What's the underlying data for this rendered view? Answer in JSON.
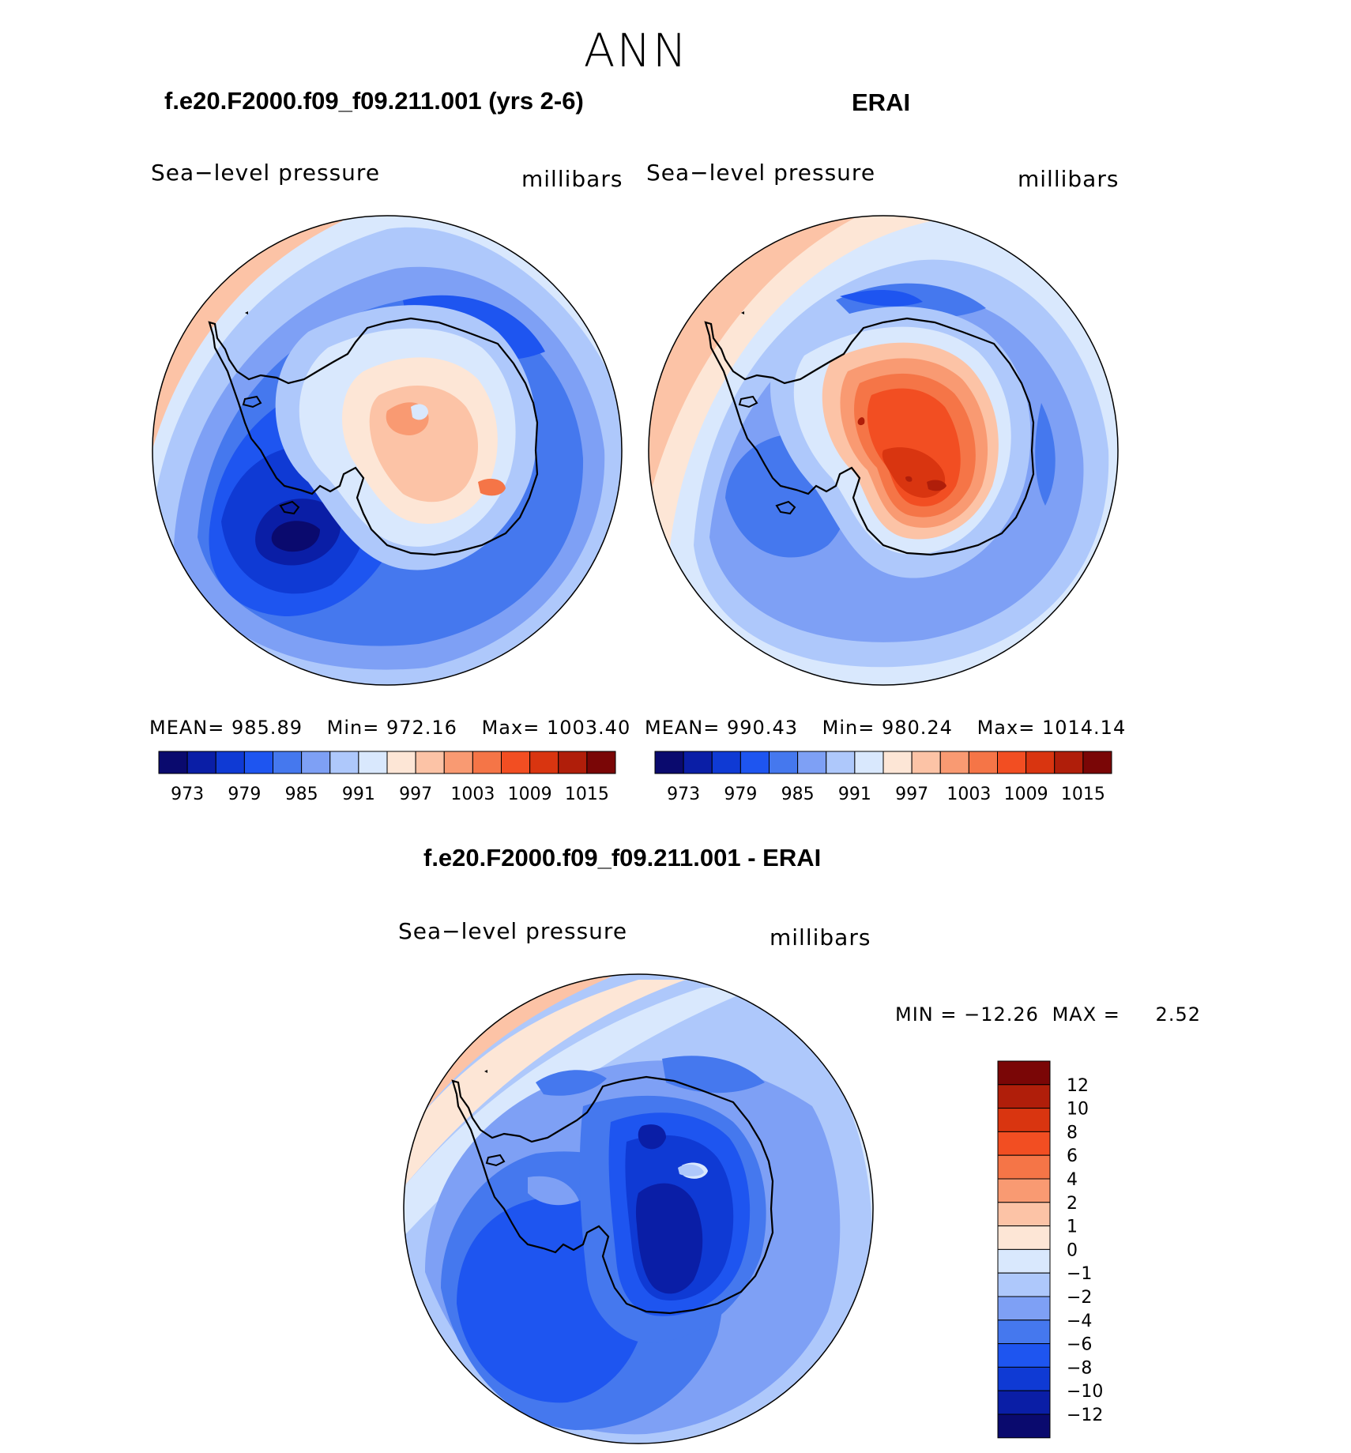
{
  "figure": {
    "title": "ANN"
  },
  "panels": {
    "model": {
      "title": "f.e20.F2000.f09_f09.211.001 (yrs 2-6)",
      "variable": "Sea−level  pressure",
      "units": "millibars",
      "stats": {
        "mean_label": "MEAN=",
        "mean": "985.89",
        "min_label": "Min=",
        "min": "972.16",
        "max_label": "Max=",
        "max": "1003.40"
      }
    },
    "obs": {
      "title": "ERAI",
      "variable": "Sea−level  pressure",
      "units": "millibars",
      "stats": {
        "mean_label": "MEAN=",
        "mean": "990.43",
        "min_label": "Min=",
        "min": "980.24",
        "max_label": "Max=",
        "max": "1014.14"
      }
    },
    "diff": {
      "title": "f.e20.F2000.f09_f09.211.001 - ERAI",
      "variable": "Sea−level  pressure",
      "units": "millibars",
      "stats": {
        "min_label": "MIN  =",
        "min": "−12.26",
        "max_label": "MAX  =",
        "max": "2.52"
      }
    }
  },
  "colorbar_abs": {
    "colors": [
      "#0a0a6e",
      "#0a1ea6",
      "#0f3ad4",
      "#1e55f0",
      "#4578ee",
      "#7ea0f5",
      "#aec8fb",
      "#d9e8fd",
      "#fde6d6",
      "#fcc3a6",
      "#f99a72",
      "#f57547",
      "#f24e22",
      "#d93510",
      "#b01e0a",
      "#7a0606"
    ],
    "labels": [
      "973",
      "979",
      "985",
      "991",
      "997",
      "1003",
      "1009",
      "1015"
    ]
  },
  "colorbar_diff": {
    "colors": [
      "#0a0a6e",
      "#0a1ea6",
      "#0f3ad4",
      "#1e55f0",
      "#4578ee",
      "#7ea0f5",
      "#aec8fb",
      "#d9e8fd",
      "#fde6d6",
      "#fcc3a6",
      "#f99a72",
      "#f57547",
      "#f24e22",
      "#d93510",
      "#b01e0a",
      "#7a0606"
    ],
    "labels": [
      "12",
      "10",
      "8",
      "6",
      "4",
      "2",
      "1",
      "0",
      "−1",
      "−2",
      "−4",
      "−6",
      "−8",
      "−10",
      "−12"
    ]
  }
}
